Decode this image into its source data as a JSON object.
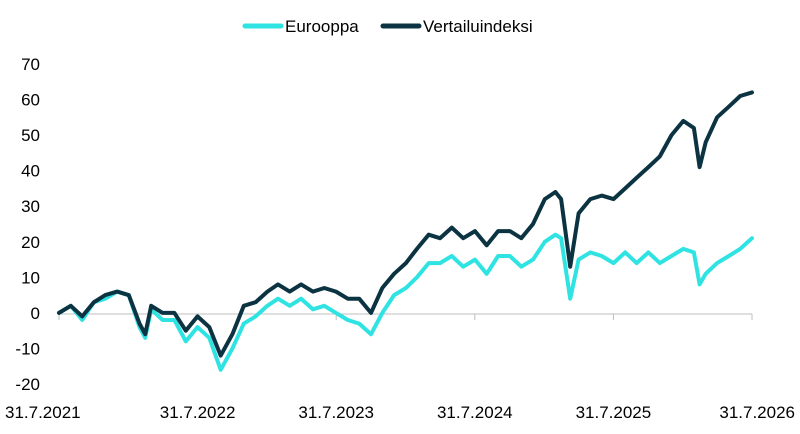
{
  "colors": {
    "eurooppa": "#2fe3e3",
    "vertailuindeksi": "#0b3341",
    "axis": "#bfbfbf",
    "text": "#000000"
  },
  "chart_data": {
    "type": "line",
    "title": "",
    "xlabel": "",
    "ylabel": "",
    "ylim": [
      -20,
      70
    ],
    "yticks": [
      -20,
      -10,
      0,
      10,
      20,
      30,
      40,
      50,
      60,
      70
    ],
    "xlim": [
      "2021-07-31",
      "2026-07-31"
    ],
    "xticks": [
      "31.7.2021",
      "31.7.2022",
      "31.7.2023",
      "31.7.2024",
      "31.7.2025",
      "31.7.2026"
    ],
    "grid": false,
    "legend": "top-center",
    "series": [
      {
        "name": "Eurooppa",
        "color": "#2fe3e3",
        "points": [
          [
            "2021-07-31",
            0
          ],
          [
            "2021-08-31",
            2
          ],
          [
            "2021-09-30",
            -2
          ],
          [
            "2021-10-31",
            3
          ],
          [
            "2021-11-30",
            4
          ],
          [
            "2021-12-31",
            6
          ],
          [
            "2022-01-31",
            5
          ],
          [
            "2022-02-28",
            -4
          ],
          [
            "2022-03-15",
            -7
          ],
          [
            "2022-03-31",
            1
          ],
          [
            "2022-04-30",
            -2
          ],
          [
            "2022-05-31",
            -2
          ],
          [
            "2022-06-30",
            -8
          ],
          [
            "2022-07-31",
            -4
          ],
          [
            "2022-08-31",
            -7
          ],
          [
            "2022-09-30",
            -16
          ],
          [
            "2022-10-31",
            -10
          ],
          [
            "2022-11-30",
            -3
          ],
          [
            "2022-12-31",
            -1
          ],
          [
            "2023-01-31",
            2
          ],
          [
            "2023-02-28",
            4
          ],
          [
            "2023-03-31",
            2
          ],
          [
            "2023-04-30",
            4
          ],
          [
            "2023-05-31",
            1
          ],
          [
            "2023-06-30",
            2
          ],
          [
            "2023-07-31",
            0
          ],
          [
            "2023-08-31",
            -2
          ],
          [
            "2023-09-30",
            -3
          ],
          [
            "2023-10-31",
            -6
          ],
          [
            "2023-11-30",
            0
          ],
          [
            "2023-12-31",
            5
          ],
          [
            "2024-01-31",
            7
          ],
          [
            "2024-02-29",
            10
          ],
          [
            "2024-03-31",
            14
          ],
          [
            "2024-04-30",
            14
          ],
          [
            "2024-05-31",
            16
          ],
          [
            "2024-06-30",
            13
          ],
          [
            "2024-07-31",
            15
          ],
          [
            "2024-08-31",
            11
          ],
          [
            "2024-09-30",
            16
          ],
          [
            "2024-10-31",
            16
          ],
          [
            "2024-11-30",
            13
          ],
          [
            "2024-12-31",
            15
          ],
          [
            "2025-01-31",
            20
          ],
          [
            "2025-02-28",
            22
          ],
          [
            "2025-03-15",
            21
          ],
          [
            "2025-04-08",
            4
          ],
          [
            "2025-04-30",
            15
          ],
          [
            "2025-05-31",
            17
          ],
          [
            "2025-06-30",
            16
          ],
          [
            "2025-07-31",
            14
          ],
          [
            "2025-08-31",
            17
          ],
          [
            "2025-09-30",
            14
          ],
          [
            "2025-10-31",
            17
          ],
          [
            "2025-11-30",
            14
          ],
          [
            "2025-12-31",
            16
          ],
          [
            "2026-01-31",
            18
          ],
          [
            "2026-02-28",
            17
          ],
          [
            "2026-03-15",
            8
          ],
          [
            "2026-03-31",
            11
          ],
          [
            "2026-04-30",
            14
          ],
          [
            "2026-05-31",
            16
          ],
          [
            "2026-06-30",
            18
          ],
          [
            "2026-07-31",
            21
          ]
        ]
      },
      {
        "name": "Vertailuindeksi",
        "color": "#0b3341",
        "points": [
          [
            "2021-07-31",
            0
          ],
          [
            "2021-08-31",
            2
          ],
          [
            "2021-09-30",
            -1
          ],
          [
            "2021-10-31",
            3
          ],
          [
            "2021-11-30",
            5
          ],
          [
            "2021-12-31",
            6
          ],
          [
            "2022-01-31",
            5
          ],
          [
            "2022-02-28",
            -3
          ],
          [
            "2022-03-15",
            -6
          ],
          [
            "2022-03-31",
            2
          ],
          [
            "2022-04-30",
            0
          ],
          [
            "2022-05-31",
            0
          ],
          [
            "2022-06-30",
            -5
          ],
          [
            "2022-07-31",
            -1
          ],
          [
            "2022-08-31",
            -4
          ],
          [
            "2022-09-30",
            -12
          ],
          [
            "2022-10-31",
            -6
          ],
          [
            "2022-11-30",
            2
          ],
          [
            "2022-12-31",
            3
          ],
          [
            "2023-01-31",
            6
          ],
          [
            "2023-02-28",
            8
          ],
          [
            "2023-03-31",
            6
          ],
          [
            "2023-04-30",
            8
          ],
          [
            "2023-05-31",
            6
          ],
          [
            "2023-06-30",
            7
          ],
          [
            "2023-07-31",
            6
          ],
          [
            "2023-08-31",
            4
          ],
          [
            "2023-09-30",
            4
          ],
          [
            "2023-10-31",
            0
          ],
          [
            "2023-11-30",
            7
          ],
          [
            "2023-12-31",
            11
          ],
          [
            "2024-01-31",
            14
          ],
          [
            "2024-02-29",
            18
          ],
          [
            "2024-03-31",
            22
          ],
          [
            "2024-04-30",
            21
          ],
          [
            "2024-05-31",
            24
          ],
          [
            "2024-06-30",
            21
          ],
          [
            "2024-07-31",
            23
          ],
          [
            "2024-08-31",
            19
          ],
          [
            "2024-09-30",
            23
          ],
          [
            "2024-10-31",
            23
          ],
          [
            "2024-11-30",
            21
          ],
          [
            "2024-12-31",
            25
          ],
          [
            "2025-01-31",
            32
          ],
          [
            "2025-02-28",
            34
          ],
          [
            "2025-03-15",
            32
          ],
          [
            "2025-04-08",
            13
          ],
          [
            "2025-04-30",
            28
          ],
          [
            "2025-05-31",
            32
          ],
          [
            "2025-06-30",
            33
          ],
          [
            "2025-07-31",
            32
          ],
          [
            "2025-08-31",
            35
          ],
          [
            "2025-09-30",
            38
          ],
          [
            "2025-10-31",
            41
          ],
          [
            "2025-11-30",
            44
          ],
          [
            "2025-12-31",
            50
          ],
          [
            "2026-01-31",
            54
          ],
          [
            "2026-02-28",
            52
          ],
          [
            "2026-03-15",
            41
          ],
          [
            "2026-03-31",
            48
          ],
          [
            "2026-04-30",
            55
          ],
          [
            "2026-05-31",
            58
          ],
          [
            "2026-06-30",
            61
          ],
          [
            "2026-07-31",
            62
          ]
        ]
      }
    ]
  }
}
